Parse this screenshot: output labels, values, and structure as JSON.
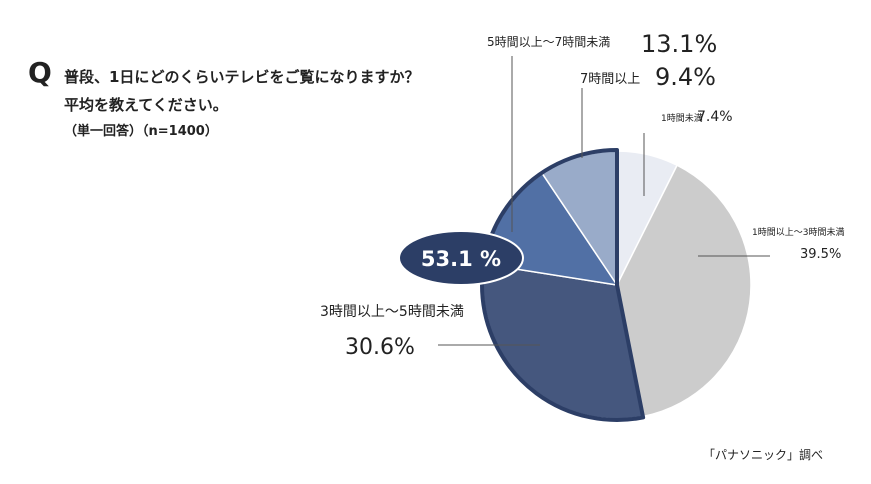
{
  "question": {
    "mark": "Q",
    "line1": "普段、1日にどのくらいテレビをご覧になりますか？",
    "line2": "平均を教えてください。",
    "note": "（単一回答）（n=1400）"
  },
  "source": "「パナソニック」調べ",
  "chart_data": {
    "type": "pie",
    "start_angle_deg": 0,
    "direction": "clockwise",
    "slices": [
      {
        "label": "1時間未満",
        "value": 7.4,
        "value_label": "7.4%",
        "color": "#e9ecf3"
      },
      {
        "label": "1時間以上〜3時間未満",
        "value": 39.5,
        "value_label": "39.5%",
        "color": "#cccccc"
      },
      {
        "label": "3時間以上〜5時間未満",
        "value": 30.6,
        "value_label": "30.6%",
        "color": "#45577e",
        "highlight": true
      },
      {
        "label": "5時間以上〜7時間未満",
        "value": 13.1,
        "value_label": "13.1%",
        "color": "#5170a5",
        "highlight": true
      },
      {
        "label": "7時間以上",
        "value": 9.4,
        "value_label": "9.4%",
        "color": "#99abc9",
        "highlight": true
      }
    ],
    "highlight_total_label": "53.1 %",
    "highlight_color": "#2c3e66",
    "legend": "none"
  }
}
